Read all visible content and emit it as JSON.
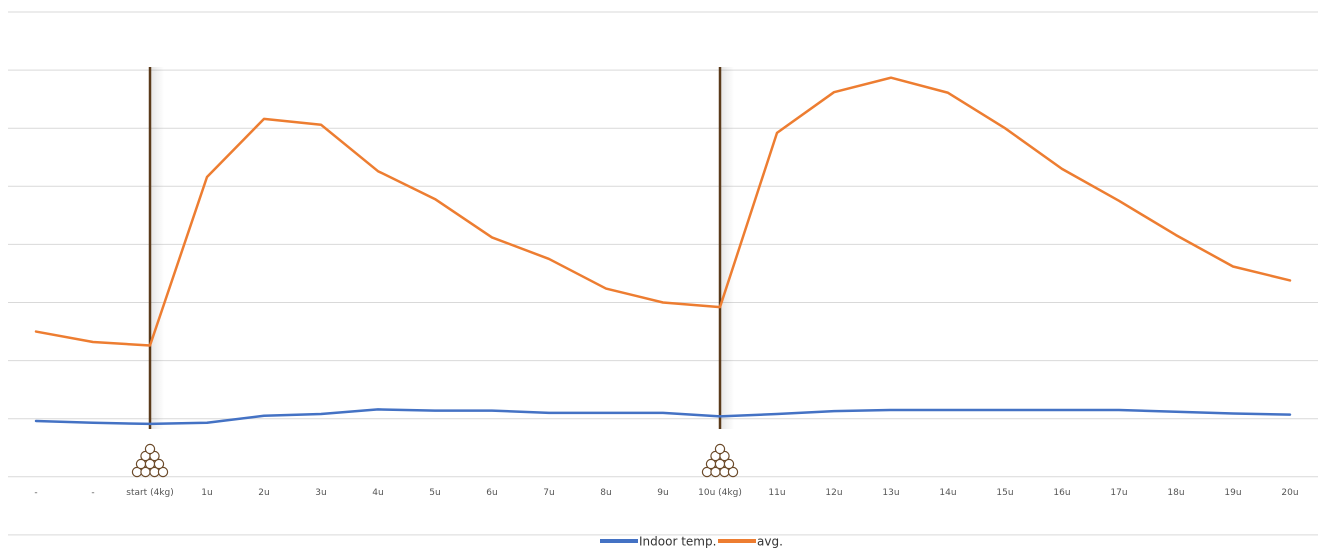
{
  "chart_data": {
    "type": "line",
    "title": "",
    "xlabel": "",
    "ylabel": "",
    "categories": [
      "-",
      "-",
      "start (4kg)",
      "1u",
      "2u",
      "3u",
      "4u",
      "5u",
      "6u",
      "7u",
      "8u",
      "9u",
      "10u (4kg)",
      "11u",
      "12u",
      "13u",
      "14u",
      "15u",
      "16u",
      "17u",
      "18u",
      "19u",
      "20u"
    ],
    "series": [
      {
        "name": "Indoor temp.",
        "color": "#4472c4",
        "values": [
          0.96,
          0.93,
          0.91,
          0.93,
          1.05,
          1.08,
          1.16,
          1.14,
          1.14,
          1.1,
          1.1,
          1.1,
          1.04,
          1.08,
          1.13,
          1.15,
          1.15,
          1.15,
          1.15,
          1.15,
          1.12,
          1.09,
          1.07
        ]
      },
      {
        "name": "avg.",
        "color": "#ed7d31",
        "values": [
          2.5,
          2.32,
          2.26,
          5.16,
          6.16,
          6.06,
          5.26,
          4.78,
          4.12,
          3.75,
          3.24,
          3.0,
          2.92,
          5.92,
          6.62,
          6.87,
          6.61,
          6.0,
          5.3,
          4.75,
          4.16,
          3.62,
          3.38
        ]
      }
    ],
    "ylim": [
      -1,
      8
    ],
    "grid": true,
    "axis_labels_y": false,
    "legend_position": "bottom",
    "markers": [
      {
        "at": "start (4kg)",
        "line_color": "#5a3a1a",
        "icon": "firewood-icon"
      },
      {
        "at": "10u (4kg)",
        "line_color": "#5a3a1a",
        "icon": "firewood-icon"
      }
    ]
  }
}
